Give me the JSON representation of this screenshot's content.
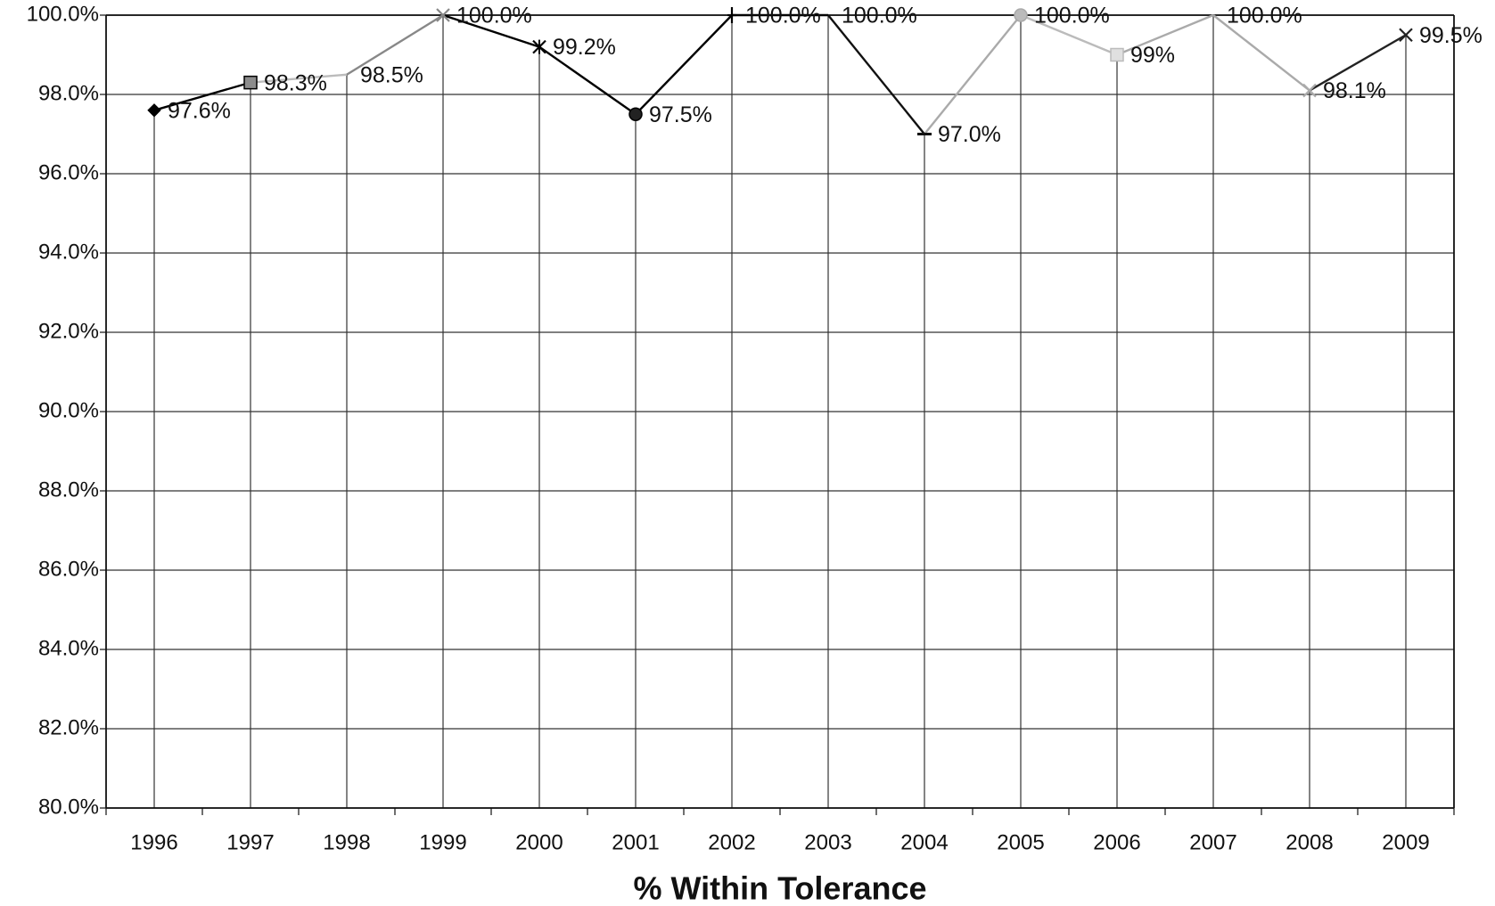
{
  "chart_data": {
    "type": "line",
    "xlabel": "% Within Tolerance",
    "ylabel": "",
    "ylim": [
      80,
      100
    ],
    "yticks": [
      "80.0%",
      "82.0%",
      "84.0%",
      "86.0%",
      "88.0%",
      "90.0%",
      "92.0%",
      "94.0%",
      "96.0%",
      "98.0%",
      "100.0%"
    ],
    "categories": [
      "1996",
      "1997",
      "1998",
      "1999",
      "2000",
      "2001",
      "2002",
      "2003",
      "2004",
      "2005",
      "2006",
      "2007",
      "2008",
      "2009"
    ],
    "values": [
      97.6,
      98.3,
      98.5,
      100.0,
      99.2,
      97.5,
      100.0,
      100.0,
      97.0,
      100.0,
      99.0,
      100.0,
      98.1,
      99.5
    ],
    "data_labels": [
      "97.6%",
      "98.3%",
      "98.5%",
      "100.0%",
      "99.2%",
      "97.5%",
      "100.0%",
      "100.0%",
      "97.0%",
      "100.0%",
      "99%",
      "100.0%",
      "98.1%",
      "99.5%"
    ],
    "markers": [
      "diamond",
      "square",
      "none",
      "x",
      "x",
      "circle",
      "plus",
      "none",
      "dash",
      "circle",
      "square",
      "none",
      "x",
      "x"
    ],
    "colors": [
      "#000000",
      "#000000",
      "#bbbbbb",
      "#888888",
      "#000000",
      "#000000",
      "#000000",
      "#000000",
      "#111111",
      "#aaaaaa",
      "#bbbbbb",
      "#aaaaaa",
      "#aaaaaa",
      "#222222"
    ],
    "marker_fills": [
      "#000000",
      "#8c8c8c",
      "#ffffff",
      "#888888",
      "#000000",
      "#222222",
      "#000000",
      "#000000",
      "#888888",
      "#bbbbbb",
      "#e0e0e0",
      "#ffffff",
      "#aaaaaa",
      "#222222"
    ],
    "grid": true,
    "legend": "none"
  }
}
